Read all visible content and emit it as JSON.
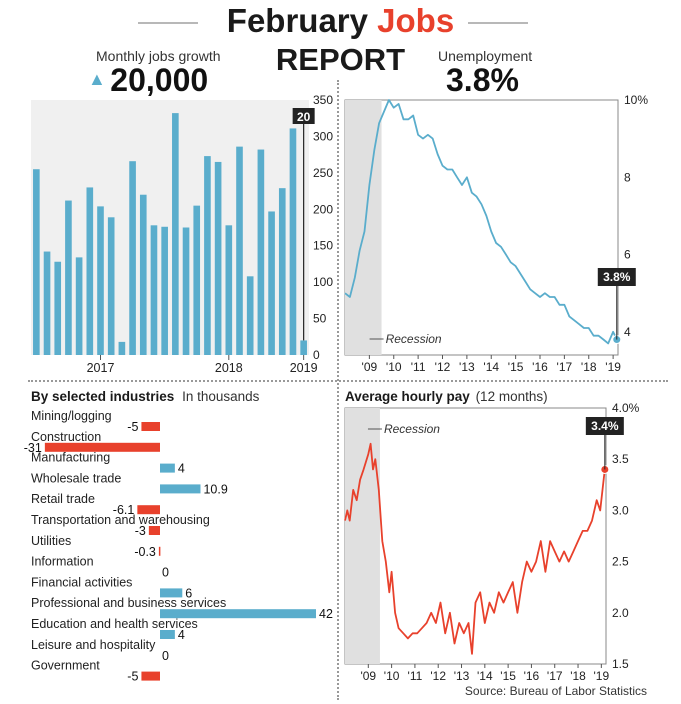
{
  "header": {
    "title_main": "February",
    "title_highlight": "Jobs",
    "subtitle": "REPORT",
    "jobs_label": "Monthly jobs growth",
    "jobs_value": "20,000",
    "jobs_arrow": "▲",
    "unemp_label": "Unemployment",
    "unemp_value": "3.8%"
  },
  "colors": {
    "blue": "#5aadcc",
    "red": "#e8412c",
    "dark": "#222222",
    "recession": "#e0e0e0"
  },
  "source": "Source: Bureau of Labor Statistics",
  "chart_data": [
    {
      "id": "jobs",
      "type": "bar",
      "title": "Monthly jobs growth",
      "ylim": [
        0,
        350
      ],
      "yticks": [
        "0",
        "50",
        "100",
        "150",
        "200",
        "250",
        "300",
        "350"
      ],
      "year_labels": [
        {
          "label": "2017",
          "index": 6
        },
        {
          "label": "2018",
          "index": 18
        },
        {
          "label": "2019",
          "index": 25
        }
      ],
      "values": [
        255,
        142,
        128,
        212,
        134,
        230,
        204,
        189,
        18,
        266,
        220,
        178,
        176,
        332,
        175,
        205,
        273,
        265,
        178,
        286,
        108,
        282,
        197,
        229,
        311,
        20
      ],
      "callout": "20"
    },
    {
      "id": "unemployment",
      "type": "line",
      "title": "Unemployment",
      "ylim": [
        3.4,
        10
      ],
      "yticks": [
        "4",
        "6",
        "8",
        "10%"
      ],
      "ytick_values": [
        4,
        6,
        8,
        10
      ],
      "xticks": [
        "'09",
        "'10",
        "'11",
        "'12",
        "'13",
        "'14",
        "'15",
        "'16",
        "'17",
        "'18",
        "'19"
      ],
      "x_start": 2008.0,
      "x_end": 2019.2,
      "recession": [
        2008.0,
        2009.5
      ],
      "recession_label": "Recession",
      "points": [
        [
          2008.0,
          5.0
        ],
        [
          2008.2,
          4.9
        ],
        [
          2008.4,
          5.4
        ],
        [
          2008.6,
          6.1
        ],
        [
          2008.8,
          6.6
        ],
        [
          2009.0,
          7.8
        ],
        [
          2009.2,
          8.7
        ],
        [
          2009.4,
          9.4
        ],
        [
          2009.6,
          9.7
        ],
        [
          2009.8,
          10.0
        ],
        [
          2010.0,
          9.8
        ],
        [
          2010.2,
          9.9
        ],
        [
          2010.4,
          9.5
        ],
        [
          2010.6,
          9.5
        ],
        [
          2010.8,
          9.6
        ],
        [
          2011.0,
          9.1
        ],
        [
          2011.2,
          9.0
        ],
        [
          2011.4,
          9.1
        ],
        [
          2011.6,
          9.0
        ],
        [
          2011.8,
          8.6
        ],
        [
          2012.0,
          8.3
        ],
        [
          2012.2,
          8.2
        ],
        [
          2012.4,
          8.2
        ],
        [
          2012.6,
          8.0
        ],
        [
          2012.8,
          7.8
        ],
        [
          2013.0,
          8.0
        ],
        [
          2013.2,
          7.6
        ],
        [
          2013.4,
          7.5
        ],
        [
          2013.6,
          7.3
        ],
        [
          2013.8,
          7.0
        ],
        [
          2014.0,
          6.6
        ],
        [
          2014.2,
          6.3
        ],
        [
          2014.4,
          6.2
        ],
        [
          2014.6,
          6.0
        ],
        [
          2014.8,
          5.8
        ],
        [
          2015.0,
          5.7
        ],
        [
          2015.2,
          5.5
        ],
        [
          2015.4,
          5.3
        ],
        [
          2015.6,
          5.1
        ],
        [
          2015.8,
          5.0
        ],
        [
          2016.0,
          4.9
        ],
        [
          2016.2,
          5.0
        ],
        [
          2016.4,
          4.9
        ],
        [
          2016.6,
          4.9
        ],
        [
          2016.8,
          4.7
        ],
        [
          2017.0,
          4.7
        ],
        [
          2017.2,
          4.4
        ],
        [
          2017.4,
          4.3
        ],
        [
          2017.6,
          4.2
        ],
        [
          2017.8,
          4.1
        ],
        [
          2018.0,
          4.1
        ],
        [
          2018.2,
          3.9
        ],
        [
          2018.4,
          3.9
        ],
        [
          2018.6,
          3.8
        ],
        [
          2018.8,
          3.7
        ],
        [
          2019.0,
          4.0
        ],
        [
          2019.15,
          3.8
        ]
      ],
      "callout": "3.8%"
    },
    {
      "id": "industries",
      "type": "bar",
      "orientation": "horizontal",
      "title": "By selected industries",
      "unit_note": "In thousands",
      "xlim": [
        -31,
        42
      ],
      "categories": [
        "Mining/logging",
        "Construction",
        "Manufacturing",
        "Wholesale trade",
        "Retail trade",
        "Transportation and warehousing",
        "Utilities",
        "Information",
        "Financial activities",
        "Professional and business services",
        "Education and health services",
        "Leisure and hospitality",
        "Government"
      ],
      "values": [
        -5,
        -31,
        4,
        10.9,
        -6.1,
        -3,
        -0.3,
        0,
        6,
        42,
        4,
        0,
        -5
      ],
      "labels": [
        "-5",
        "-31",
        "4",
        "10.9",
        "-6.1",
        "-3",
        "-0.3",
        "0",
        "6",
        "42",
        "4",
        "0",
        "-5"
      ]
    },
    {
      "id": "hourly_pay",
      "type": "line",
      "title": "Average hourly pay",
      "subtitle": "(12 months)",
      "ylim": [
        1.5,
        4.0
      ],
      "yticks": [
        "1.5",
        "2.0",
        "2.5",
        "3.0",
        "3.5",
        "4.0%"
      ],
      "ytick_values": [
        1.5,
        2.0,
        2.5,
        3.0,
        3.5,
        4.0
      ],
      "xticks": [
        "'09",
        "'10",
        "'11",
        "'12",
        "'13",
        "'14",
        "'15",
        "'16",
        "'17",
        "'18",
        "'19"
      ],
      "x_start": 2008.0,
      "x_end": 2019.2,
      "recession": [
        2008.0,
        2009.5
      ],
      "recession_label": "Recession",
      "points": [
        [
          2008.0,
          2.9
        ],
        [
          2008.1,
          3.0
        ],
        [
          2008.2,
          2.9
        ],
        [
          2008.35,
          3.2
        ],
        [
          2008.5,
          3.1
        ],
        [
          2008.65,
          3.3
        ],
        [
          2008.8,
          3.4
        ],
        [
          2009.0,
          3.55
        ],
        [
          2009.1,
          3.65
        ],
        [
          2009.2,
          3.4
        ],
        [
          2009.3,
          3.5
        ],
        [
          2009.45,
          3.2
        ],
        [
          2009.6,
          2.7
        ],
        [
          2009.75,
          2.5
        ],
        [
          2009.9,
          2.2
        ],
        [
          2010.0,
          2.4
        ],
        [
          2010.15,
          2.0
        ],
        [
          2010.3,
          1.85
        ],
        [
          2010.5,
          1.8
        ],
        [
          2010.7,
          1.75
        ],
        [
          2010.9,
          1.8
        ],
        [
          2011.1,
          1.8
        ],
        [
          2011.3,
          1.85
        ],
        [
          2011.5,
          1.9
        ],
        [
          2011.7,
          2.0
        ],
        [
          2011.9,
          1.9
        ],
        [
          2012.1,
          2.1
        ],
        [
          2012.3,
          1.8
        ],
        [
          2012.5,
          2.0
        ],
        [
          2012.7,
          1.7
        ],
        [
          2012.9,
          1.9
        ],
        [
          2013.1,
          1.8
        ],
        [
          2013.3,
          1.9
        ],
        [
          2013.45,
          1.6
        ],
        [
          2013.6,
          2.1
        ],
        [
          2013.8,
          2.2
        ],
        [
          2014.0,
          1.9
        ],
        [
          2014.2,
          2.1
        ],
        [
          2014.4,
          2.0
        ],
        [
          2014.6,
          2.2
        ],
        [
          2014.8,
          2.1
        ],
        [
          2015.0,
          2.2
        ],
        [
          2015.2,
          2.3
        ],
        [
          2015.4,
          2.0
        ],
        [
          2015.6,
          2.3
        ],
        [
          2015.8,
          2.5
        ],
        [
          2016.0,
          2.4
        ],
        [
          2016.2,
          2.5
        ],
        [
          2016.4,
          2.7
        ],
        [
          2016.6,
          2.4
        ],
        [
          2016.8,
          2.7
        ],
        [
          2017.0,
          2.6
        ],
        [
          2017.2,
          2.5
        ],
        [
          2017.4,
          2.6
        ],
        [
          2017.6,
          2.5
        ],
        [
          2017.8,
          2.6
        ],
        [
          2018.0,
          2.7
        ],
        [
          2018.2,
          2.8
        ],
        [
          2018.4,
          2.8
        ],
        [
          2018.6,
          2.9
        ],
        [
          2018.8,
          3.1
        ],
        [
          2018.95,
          3.0
        ],
        [
          2019.15,
          3.4
        ]
      ],
      "callout": "3.4%"
    }
  ]
}
